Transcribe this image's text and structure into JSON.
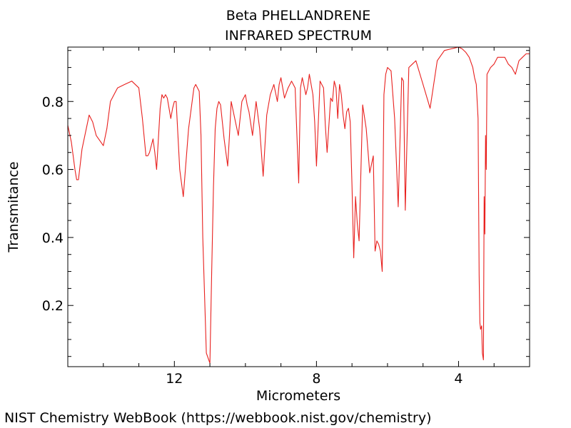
{
  "chart_data": {
    "type": "line",
    "title": "Beta PHELLANDRENE",
    "subtitle": "INFRARED SPECTRUM",
    "xlabel": "Micrometers",
    "ylabel": "Transmitance",
    "xlim": [
      15,
      2
    ],
    "ylim": [
      0.02,
      0.96
    ],
    "x_ticks": [
      12,
      8,
      4
    ],
    "y_ticks": [
      0.2,
      0.4,
      0.6,
      0.8
    ],
    "x_tick_labels": [
      "12",
      "8",
      "4"
    ],
    "y_tick_labels": [
      "0.2",
      "0.4",
      "0.6",
      "0.8"
    ],
    "grid": false,
    "series": [
      {
        "color": "#e8201e",
        "x": [
          15.0,
          14.9,
          14.8,
          14.75,
          14.7,
          14.6,
          14.4,
          14.3,
          14.2,
          14.0,
          13.9,
          13.8,
          13.6,
          13.4,
          13.2,
          13.0,
          12.9,
          12.8,
          12.75,
          12.7,
          12.6,
          12.55,
          12.5,
          12.4,
          12.35,
          12.3,
          12.25,
          12.2,
          12.1,
          12.05,
          12.0,
          11.95,
          11.9,
          11.85,
          11.8,
          11.75,
          11.6,
          11.5,
          11.45,
          11.4,
          11.35,
          11.3,
          11.25,
          11.2,
          11.1,
          11.0,
          10.95,
          10.9,
          10.85,
          10.8,
          10.75,
          10.7,
          10.6,
          10.5,
          10.45,
          10.4,
          10.3,
          10.2,
          10.1,
          10.0,
          9.95,
          9.9,
          9.8,
          9.7,
          9.6,
          9.5,
          9.4,
          9.3,
          9.2,
          9.1,
          9.05,
          9.0,
          8.9,
          8.8,
          8.7,
          8.6,
          8.55,
          8.5,
          8.45,
          8.4,
          8.3,
          8.25,
          8.2,
          8.1,
          8.05,
          8.0,
          7.9,
          7.8,
          7.75,
          7.7,
          7.6,
          7.55,
          7.5,
          7.45,
          7.4,
          7.35,
          7.3,
          7.25,
          7.2,
          7.15,
          7.1,
          7.05,
          7.0,
          6.95,
          6.9,
          6.85,
          6.8,
          6.7,
          6.6,
          6.5,
          6.4,
          6.35,
          6.3,
          6.25,
          6.2,
          6.15,
          6.1,
          6.05,
          6.0,
          5.9,
          5.8,
          5.7,
          5.6,
          5.55,
          5.5,
          5.4,
          5.3,
          5.2,
          5.0,
          4.8,
          4.6,
          4.4,
          4.2,
          4.0,
          3.9,
          3.8,
          3.7,
          3.6,
          3.55,
          3.5,
          3.45,
          3.42,
          3.4,
          3.38,
          3.35,
          3.33,
          3.3,
          3.28,
          3.26,
          3.24,
          3.22,
          3.2,
          3.1,
          3.0,
          2.9,
          2.8,
          2.7,
          2.6,
          2.5,
          2.4,
          2.35,
          2.3,
          2.2,
          2.1,
          2.0
        ],
        "y": [
          0.73,
          0.68,
          0.6,
          0.57,
          0.57,
          0.66,
          0.76,
          0.74,
          0.7,
          0.67,
          0.72,
          0.8,
          0.84,
          0.85,
          0.86,
          0.84,
          0.75,
          0.64,
          0.64,
          0.65,
          0.69,
          0.65,
          0.6,
          0.78,
          0.82,
          0.81,
          0.82,
          0.81,
          0.75,
          0.78,
          0.8,
          0.8,
          0.7,
          0.6,
          0.56,
          0.52,
          0.72,
          0.8,
          0.84,
          0.85,
          0.84,
          0.83,
          0.7,
          0.4,
          0.06,
          0.03,
          0.3,
          0.55,
          0.72,
          0.78,
          0.8,
          0.79,
          0.69,
          0.61,
          0.7,
          0.8,
          0.75,
          0.7,
          0.8,
          0.82,
          0.79,
          0.77,
          0.7,
          0.8,
          0.72,
          0.58,
          0.76,
          0.82,
          0.85,
          0.8,
          0.85,
          0.87,
          0.81,
          0.84,
          0.86,
          0.84,
          0.7,
          0.56,
          0.84,
          0.87,
          0.82,
          0.84,
          0.88,
          0.82,
          0.74,
          0.61,
          0.86,
          0.84,
          0.73,
          0.65,
          0.81,
          0.8,
          0.86,
          0.84,
          0.75,
          0.85,
          0.82,
          0.76,
          0.72,
          0.77,
          0.78,
          0.74,
          0.55,
          0.34,
          0.52,
          0.44,
          0.39,
          0.79,
          0.72,
          0.59,
          0.64,
          0.36,
          0.39,
          0.38,
          0.36,
          0.3,
          0.82,
          0.88,
          0.9,
          0.89,
          0.75,
          0.49,
          0.87,
          0.86,
          0.48,
          0.9,
          0.91,
          0.92,
          0.85,
          0.78,
          0.92,
          0.95,
          0.955,
          0.96,
          0.955,
          0.945,
          0.93,
          0.9,
          0.87,
          0.85,
          0.75,
          0.29,
          0.15,
          0.13,
          0.14,
          0.06,
          0.04,
          0.52,
          0.41,
          0.7,
          0.6,
          0.88,
          0.9,
          0.91,
          0.93,
          0.93,
          0.93,
          0.91,
          0.9,
          0.88,
          0.9,
          0.92,
          0.93,
          0.94,
          0.94
        ]
      }
    ]
  },
  "footer": "NIST Chemistry WebBook (https://webbook.nist.gov/chemistry)"
}
